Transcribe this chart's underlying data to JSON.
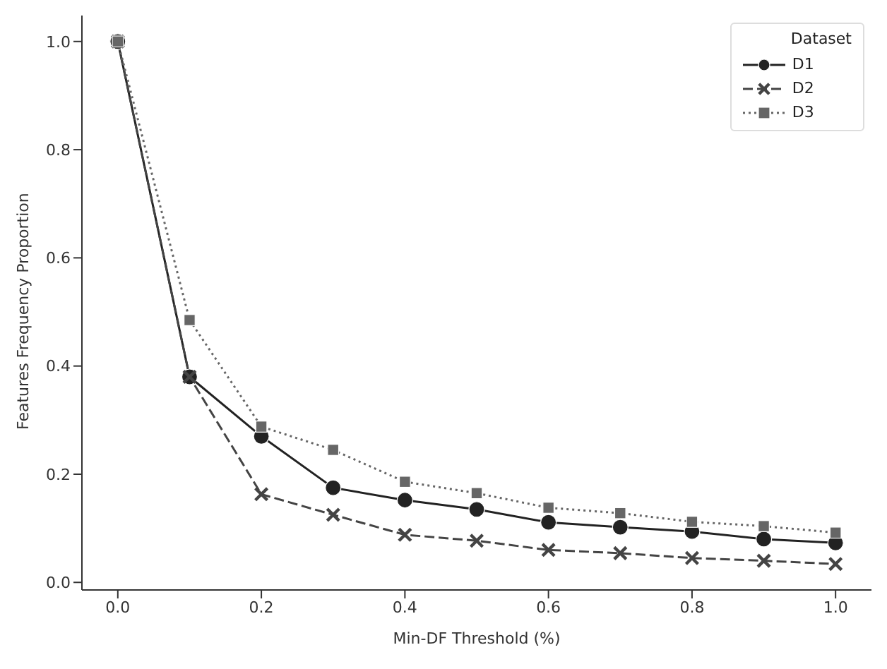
{
  "chart_data": {
    "type": "line",
    "xlabel": "Min-DF Threshold (%)",
    "ylabel": "Features Frequency Proportion",
    "legend_title": "Dataset",
    "legend": "top right",
    "grid": false,
    "x": [
      0.0,
      0.1,
      0.2,
      0.3,
      0.4,
      0.5,
      0.6,
      0.7,
      0.8,
      0.9,
      1.0
    ],
    "xlim": [
      -0.05,
      1.05
    ],
    "xticks": [
      {
        "value": 0,
        "label": "0.0"
      },
      0.2,
      0.4,
      0.6,
      0.8,
      {
        "value": 1,
        "label": "1.0"
      }
    ],
    "ylim": [
      -0.014,
      1.048
    ],
    "yticks": [
      {
        "value": 0,
        "label": "0.0"
      },
      0.2,
      0.4,
      0.6,
      0.8,
      {
        "value": 1,
        "label": "1.0"
      }
    ],
    "series": [
      {
        "name": "D1",
        "color": "#222222",
        "marker": "circle",
        "line_style": "solid",
        "values": [
          1.0,
          0.38,
          0.27,
          0.175,
          0.152,
          0.135,
          0.111,
          0.102,
          0.094,
          0.08,
          0.073
        ]
      },
      {
        "name": "D2",
        "color": "#444444",
        "marker": "cross",
        "line_style": "dashed",
        "values": [
          1.0,
          0.38,
          0.163,
          0.125,
          0.088,
          0.077,
          0.06,
          0.054,
          0.045,
          0.04,
          0.034
        ]
      },
      {
        "name": "D3",
        "color": "#666666",
        "marker": "square",
        "line_style": "dotted",
        "values": [
          1.0,
          0.485,
          0.288,
          0.245,
          0.186,
          0.165,
          0.138,
          0.128,
          0.112,
          0.104,
          0.092
        ]
      }
    ]
  }
}
